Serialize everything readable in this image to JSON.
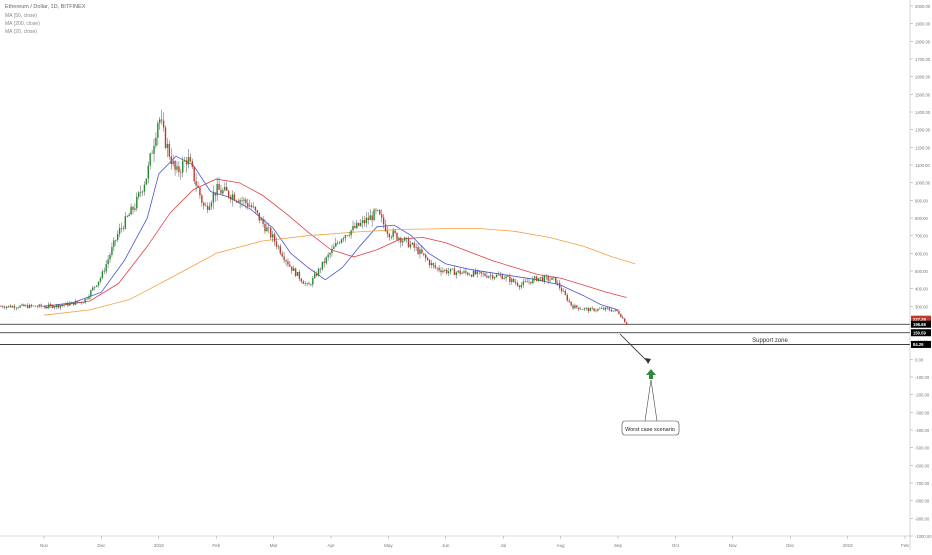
{
  "legend": {
    "symbol_line": "Ethereum / Dollar, 1D, BITFINEX",
    "ma_lines": [
      "MA (50, close)",
      "MA (200, close)",
      "MA (20, close)"
    ]
  },
  "annotations": {
    "support_label": "Support zone",
    "callout_label": "Worst case scenario"
  },
  "colors": {
    "up": "#1f8a2e",
    "down": "#c0392b",
    "wick": "#555555",
    "ma50": "#e0404a",
    "ma200": "#f5a040",
    "ma20": "#4a56d0",
    "arrow": "#2e8b3e"
  },
  "chart_data": {
    "type": "line",
    "title": "",
    "xlabel": "",
    "ylabel": "",
    "ylim": [
      -1000,
      2000
    ],
    "y_ticks": [
      2000,
      1900,
      1800,
      1700,
      1600,
      1500,
      1400,
      1300,
      1200,
      1100,
      1000,
      900,
      800,
      700,
      600,
      500,
      400,
      300,
      200,
      100,
      0,
      -100,
      -200,
      -300,
      -400,
      -500,
      -600,
      -700,
      -800,
      -900,
      -1000
    ],
    "y_tick_labels": [
      "2000.00",
      "1900.00",
      "1800.00",
      "1700.00",
      "1600.00",
      "1500.00",
      "1400.00",
      "1300.00",
      "1200.00",
      "1100.00",
      "1000.00",
      "900.00",
      "800.00",
      "700.00",
      "600.00",
      "500.00",
      "400.00",
      "300.00",
      "200.00",
      "100.00",
      "0.00",
      "-100.00",
      "-200.00",
      "-300.00",
      "-400.00",
      "-500.00",
      "-600.00",
      "-700.00",
      "-800.00",
      "-900.00",
      "-1000.00"
    ],
    "x_ticks": [
      "Nov",
      "Dec",
      "2018",
      "Feb",
      "Mar",
      "Apr",
      "May",
      "Jun",
      "Jul",
      "Aug",
      "Sep",
      "Oct",
      "Nov",
      "Dec",
      "2019",
      "Feb"
    ],
    "x_tick_index": [
      0,
      1,
      2,
      3,
      4,
      5,
      6,
      7,
      8,
      9,
      10,
      11,
      12,
      13,
      14,
      15
    ],
    "price_badges": [
      {
        "value": 227.29,
        "label": "227.29",
        "color": "#c0392b"
      },
      {
        "value": 198.68,
        "label": "198.68",
        "color": "#000000"
      },
      {
        "value": 150.59,
        "label": "150.59",
        "color": "#000000"
      },
      {
        "value": 84.29,
        "label": "84.29",
        "color": "#000000"
      }
    ],
    "horizontal_lines": [
      198.68,
      150.59,
      84.29
    ],
    "price_path": {
      "x_month_index": [
        0,
        0.3,
        0.7,
        1.0,
        1.3,
        1.6,
        1.8,
        2.0,
        2.1,
        2.3,
        2.5,
        2.8,
        3.0,
        3.3,
        3.6,
        4.0,
        4.3,
        4.6,
        4.9,
        5.2,
        5.5,
        5.8,
        6.0,
        6.2,
        6.5,
        6.8,
        7.0,
        7.3,
        7.6,
        8.0,
        8.3,
        8.6,
        8.9,
        9.2,
        9.5,
        9.8,
        10.0,
        10.15
      ],
      "values": [
        300,
        305,
        330,
        470,
        720,
        880,
        1050,
        1380,
        1250,
        1050,
        1140,
        850,
        960,
        930,
        870,
        680,
        520,
        410,
        560,
        700,
        760,
        830,
        720,
        690,
        620,
        520,
        500,
        490,
        480,
        470,
        420,
        460,
        450,
        300,
        280,
        285,
        270,
        200
      ]
    },
    "series": [
      {
        "name": "MA (20, close)",
        "x": [
          0,
          0.5,
          1.0,
          1.4,
          1.8,
          2.0,
          2.3,
          2.6,
          2.9,
          3.2,
          3.6,
          4.0,
          4.3,
          4.6,
          4.9,
          5.2,
          5.5,
          5.8,
          6.1,
          6.4,
          6.7,
          7.0,
          7.4,
          7.8,
          8.2,
          8.6,
          9.0,
          9.4,
          9.7,
          10.0
        ],
        "values": [
          300,
          320,
          380,
          560,
          800,
          1050,
          1150,
          1100,
          950,
          920,
          850,
          740,
          600,
          520,
          450,
          520,
          640,
          750,
          760,
          700,
          600,
          540,
          510,
          490,
          470,
          450,
          420,
          360,
          310,
          280
        ]
      },
      {
        "name": "MA (50, close)",
        "x": [
          0,
          0.8,
          1.3,
          1.8,
          2.2,
          2.6,
          3.0,
          3.4,
          3.8,
          4.2,
          4.6,
          5.0,
          5.4,
          5.8,
          6.2,
          6.6,
          7.0,
          7.4,
          7.8,
          8.2,
          8.6,
          9.0,
          9.4,
          9.8,
          10.15
        ],
        "values": [
          290,
          330,
          430,
          640,
          830,
          960,
          1020,
          1000,
          930,
          830,
          720,
          620,
          580,
          620,
          680,
          690,
          660,
          610,
          560,
          520,
          480,
          460,
          420,
          380,
          350
        ]
      },
      {
        "name": "MA (200, close)",
        "x": [
          0,
          0.8,
          1.5,
          2.2,
          3.0,
          3.8,
          4.6,
          5.4,
          6.2,
          7.0,
          7.6,
          8.2,
          8.8,
          9.4,
          9.9,
          10.3
        ],
        "values": [
          250,
          280,
          340,
          460,
          600,
          670,
          700,
          720,
          735,
          740,
          740,
          725,
          690,
          640,
          580,
          540
        ]
      }
    ]
  }
}
